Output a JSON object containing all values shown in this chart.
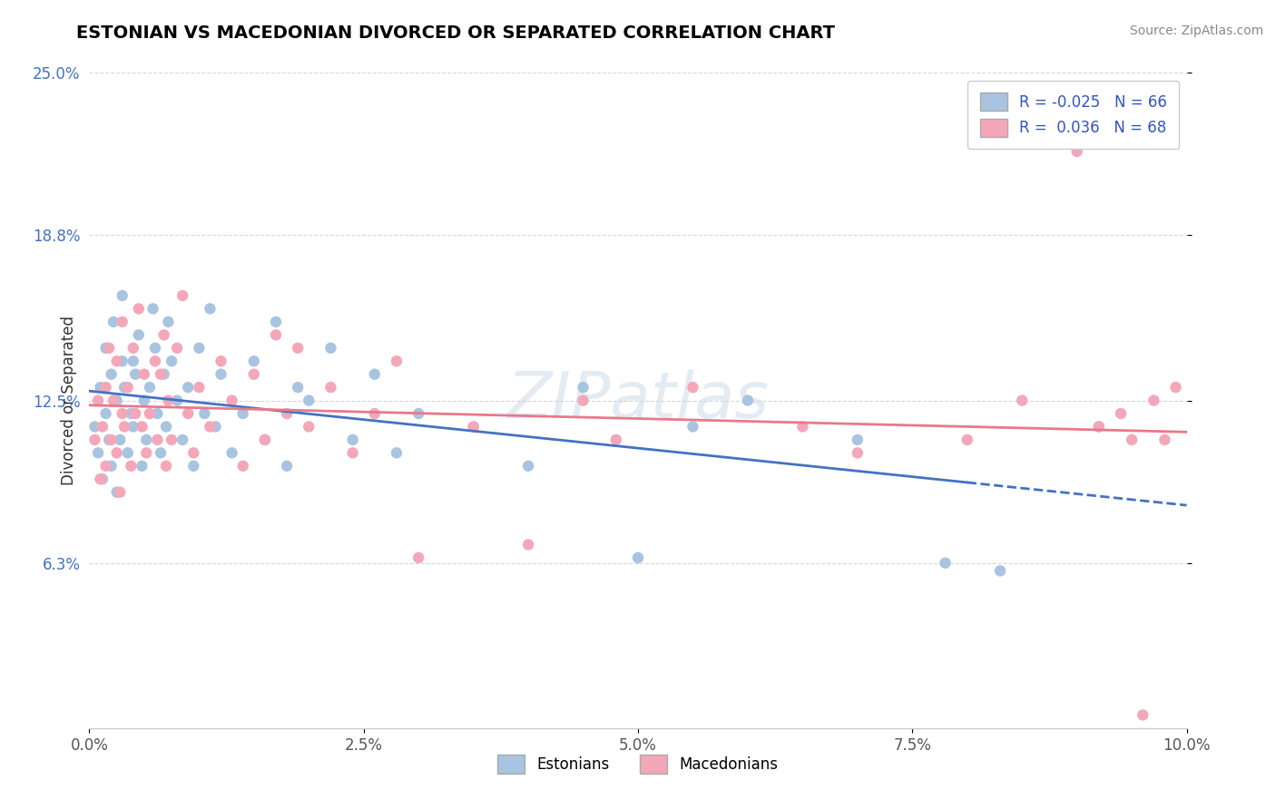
{
  "title": "ESTONIAN VS MACEDONIAN DIVORCED OR SEPARATED CORRELATION CHART",
  "source": "Source: ZipAtlas.com",
  "xlabel_nums": [
    0.0,
    2.5,
    5.0,
    7.5,
    10.0
  ],
  "xlabel_vals": [
    "0.0%",
    "2.5%",
    "5.0%",
    "7.5%",
    "10.0%"
  ],
  "ylabel_nums": [
    6.3,
    12.5,
    18.8,
    25.0
  ],
  "ylabel_vals": [
    "6.3%",
    "12.5%",
    "18.8%",
    "25.0%"
  ],
  "xlim": [
    0.0,
    10.0
  ],
  "ylim": [
    0.0,
    25.0
  ],
  "ylabel": "Divorced or Separated",
  "estonian_color": "#a8c4e0",
  "macedonian_color": "#f4a7b9",
  "estonian_line_color": "#4472c4",
  "macedonian_line_color": "#e8798a",
  "R_estonian": -0.025,
  "N_estonian": 66,
  "R_macedonian": 0.036,
  "N_macedonian": 68,
  "watermark": "ZIPatlas",
  "estonian_x": [
    0.05,
    0.08,
    0.1,
    0.12,
    0.15,
    0.15,
    0.18,
    0.2,
    0.2,
    0.22,
    0.25,
    0.25,
    0.28,
    0.3,
    0.3,
    0.32,
    0.35,
    0.38,
    0.4,
    0.4,
    0.42,
    0.45,
    0.48,
    0.5,
    0.52,
    0.55,
    0.58,
    0.6,
    0.62,
    0.65,
    0.68,
    0.7,
    0.72,
    0.75,
    0.8,
    0.85,
    0.9,
    0.95,
    1.0,
    1.05,
    1.1,
    1.15,
    1.2,
    1.3,
    1.4,
    1.5,
    1.6,
    1.7,
    1.8,
    1.9,
    2.0,
    2.2,
    2.4,
    2.6,
    2.8,
    3.0,
    3.5,
    4.0,
    4.5,
    5.0,
    5.5,
    6.0,
    7.0,
    7.8,
    8.3,
    9.2
  ],
  "estonian_y": [
    11.5,
    10.5,
    13.0,
    9.5,
    12.0,
    14.5,
    11.0,
    13.5,
    10.0,
    15.5,
    12.5,
    9.0,
    11.0,
    14.0,
    16.5,
    13.0,
    10.5,
    12.0,
    11.5,
    14.0,
    13.5,
    15.0,
    10.0,
    12.5,
    11.0,
    13.0,
    16.0,
    14.5,
    12.0,
    10.5,
    13.5,
    11.5,
    15.5,
    14.0,
    12.5,
    11.0,
    13.0,
    10.0,
    14.5,
    12.0,
    16.0,
    11.5,
    13.5,
    10.5,
    12.0,
    14.0,
    11.0,
    15.5,
    10.0,
    13.0,
    12.5,
    14.5,
    11.0,
    13.5,
    10.5,
    12.0,
    11.5,
    10.0,
    13.0,
    6.5,
    11.5,
    12.5,
    11.0,
    6.3,
    6.0,
    11.5
  ],
  "macedonian_x": [
    0.05,
    0.08,
    0.1,
    0.12,
    0.15,
    0.15,
    0.18,
    0.2,
    0.22,
    0.25,
    0.25,
    0.28,
    0.3,
    0.3,
    0.32,
    0.35,
    0.38,
    0.4,
    0.42,
    0.45,
    0.48,
    0.5,
    0.52,
    0.55,
    0.6,
    0.62,
    0.65,
    0.68,
    0.7,
    0.72,
    0.75,
    0.8,
    0.85,
    0.9,
    0.95,
    1.0,
    1.1,
    1.2,
    1.3,
    1.4,
    1.5,
    1.6,
    1.7,
    1.8,
    1.9,
    2.0,
    2.2,
    2.4,
    2.6,
    2.8,
    3.0,
    3.5,
    4.0,
    4.5,
    4.8,
    5.5,
    6.5,
    7.0,
    8.0,
    8.5,
    9.0,
    9.2,
    9.4,
    9.5,
    9.6,
    9.7,
    9.8,
    9.9
  ],
  "macedonian_y": [
    11.0,
    12.5,
    9.5,
    11.5,
    13.0,
    10.0,
    14.5,
    11.0,
    12.5,
    10.5,
    14.0,
    9.0,
    12.0,
    15.5,
    11.5,
    13.0,
    10.0,
    14.5,
    12.0,
    16.0,
    11.5,
    13.5,
    10.5,
    12.0,
    14.0,
    11.0,
    13.5,
    15.0,
    10.0,
    12.5,
    11.0,
    14.5,
    16.5,
    12.0,
    10.5,
    13.0,
    11.5,
    14.0,
    12.5,
    10.0,
    13.5,
    11.0,
    15.0,
    12.0,
    14.5,
    11.5,
    13.0,
    10.5,
    12.0,
    14.0,
    6.5,
    11.5,
    7.0,
    12.5,
    11.0,
    13.0,
    11.5,
    10.5,
    11.0,
    12.5,
    22.0,
    11.5,
    12.0,
    11.0,
    0.5,
    12.5,
    11.0,
    13.0
  ]
}
